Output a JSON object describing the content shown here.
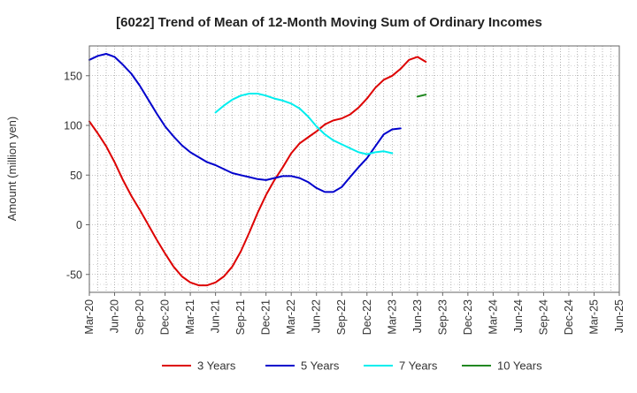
{
  "chart_data": {
    "type": "line",
    "title": "[6022]  Trend of Mean of 12-Month Moving Sum of Ordinary Incomes",
    "xlabel": "",
    "ylabel": "Amount (million yen)",
    "ylim": [
      -68,
      180
    ],
    "y_ticks": [
      -50,
      0,
      50,
      100,
      150
    ],
    "x_ticks": [
      "Mar-20",
      "Jun-20",
      "Sep-20",
      "Dec-20",
      "Mar-21",
      "Jun-21",
      "Sep-21",
      "Dec-21",
      "Mar-22",
      "Jun-22",
      "Sep-22",
      "Dec-22",
      "Mar-23",
      "Jun-23",
      "Sep-23",
      "Dec-23",
      "Mar-24",
      "Jun-24",
      "Sep-24",
      "Dec-24",
      "Mar-25",
      "Jun-25"
    ],
    "grid": true,
    "legend_position": "bottom",
    "series": [
      {
        "name": "3 Years",
        "color": "#dd0000",
        "points": [
          [
            0,
            104
          ],
          [
            1,
            92
          ],
          [
            2,
            79
          ],
          [
            3,
            63
          ],
          [
            4,
            45
          ],
          [
            5,
            29
          ],
          [
            6,
            15
          ],
          [
            7,
            0
          ],
          [
            8,
            -15
          ],
          [
            9,
            -29
          ],
          [
            10,
            -42
          ],
          [
            11,
            -52
          ],
          [
            12,
            -58
          ],
          [
            13,
            -61
          ],
          [
            14,
            -61
          ],
          [
            15,
            -58
          ],
          [
            16,
            -52
          ],
          [
            17,
            -42
          ],
          [
            18,
            -27
          ],
          [
            19,
            -8
          ],
          [
            20,
            12
          ],
          [
            21,
            30
          ],
          [
            22,
            45
          ],
          [
            23,
            58
          ],
          [
            24,
            72
          ],
          [
            25,
            82
          ],
          [
            26,
            88
          ],
          [
            27,
            94
          ],
          [
            28,
            101
          ],
          [
            29,
            105
          ],
          [
            30,
            107
          ],
          [
            31,
            111
          ],
          [
            32,
            118
          ],
          [
            33,
            127
          ],
          [
            34,
            138
          ],
          [
            35,
            146
          ],
          [
            36,
            150
          ],
          [
            37,
            157
          ],
          [
            38,
            166
          ],
          [
            39,
            169
          ],
          [
            40,
            164
          ]
        ]
      },
      {
        "name": "5 Years",
        "color": "#0000cc",
        "points": [
          [
            0,
            166
          ],
          [
            1,
            170
          ],
          [
            2,
            172
          ],
          [
            3,
            169
          ],
          [
            4,
            161
          ],
          [
            5,
            152
          ],
          [
            6,
            140
          ],
          [
            7,
            126
          ],
          [
            8,
            112
          ],
          [
            9,
            99
          ],
          [
            10,
            89
          ],
          [
            11,
            80
          ],
          [
            12,
            73
          ],
          [
            13,
            68
          ],
          [
            14,
            63
          ],
          [
            15,
            60
          ],
          [
            16,
            56
          ],
          [
            17,
            52
          ],
          [
            18,
            50
          ],
          [
            19,
            48
          ],
          [
            20,
            46
          ],
          [
            21,
            45
          ],
          [
            22,
            47
          ],
          [
            23,
            49
          ],
          [
            24,
            49
          ],
          [
            25,
            47
          ],
          [
            26,
            43
          ],
          [
            27,
            37
          ],
          [
            28,
            33
          ],
          [
            29,
            33
          ],
          [
            30,
            38
          ],
          [
            31,
            48
          ],
          [
            32,
            58
          ],
          [
            33,
            67
          ],
          [
            34,
            79
          ],
          [
            35,
            91
          ],
          [
            36,
            96
          ],
          [
            37,
            97
          ]
        ]
      },
      {
        "name": "7 Years",
        "color": "#00eeee",
        "points": [
          [
            15,
            113
          ],
          [
            16,
            120
          ],
          [
            17,
            126
          ],
          [
            18,
            130
          ],
          [
            19,
            132
          ],
          [
            20,
            132
          ],
          [
            21,
            130
          ],
          [
            22,
            127
          ],
          [
            23,
            125
          ],
          [
            24,
            122
          ],
          [
            25,
            117
          ],
          [
            26,
            109
          ],
          [
            27,
            99
          ],
          [
            28,
            91
          ],
          [
            29,
            85
          ],
          [
            30,
            81
          ],
          [
            31,
            77
          ],
          [
            32,
            73
          ],
          [
            33,
            71
          ],
          [
            34,
            73
          ],
          [
            35,
            74
          ],
          [
            36,
            72
          ]
        ]
      },
      {
        "name": "10 Years",
        "color": "#228822",
        "points": [
          [
            39,
            129
          ],
          [
            40,
            131
          ]
        ]
      }
    ]
  }
}
